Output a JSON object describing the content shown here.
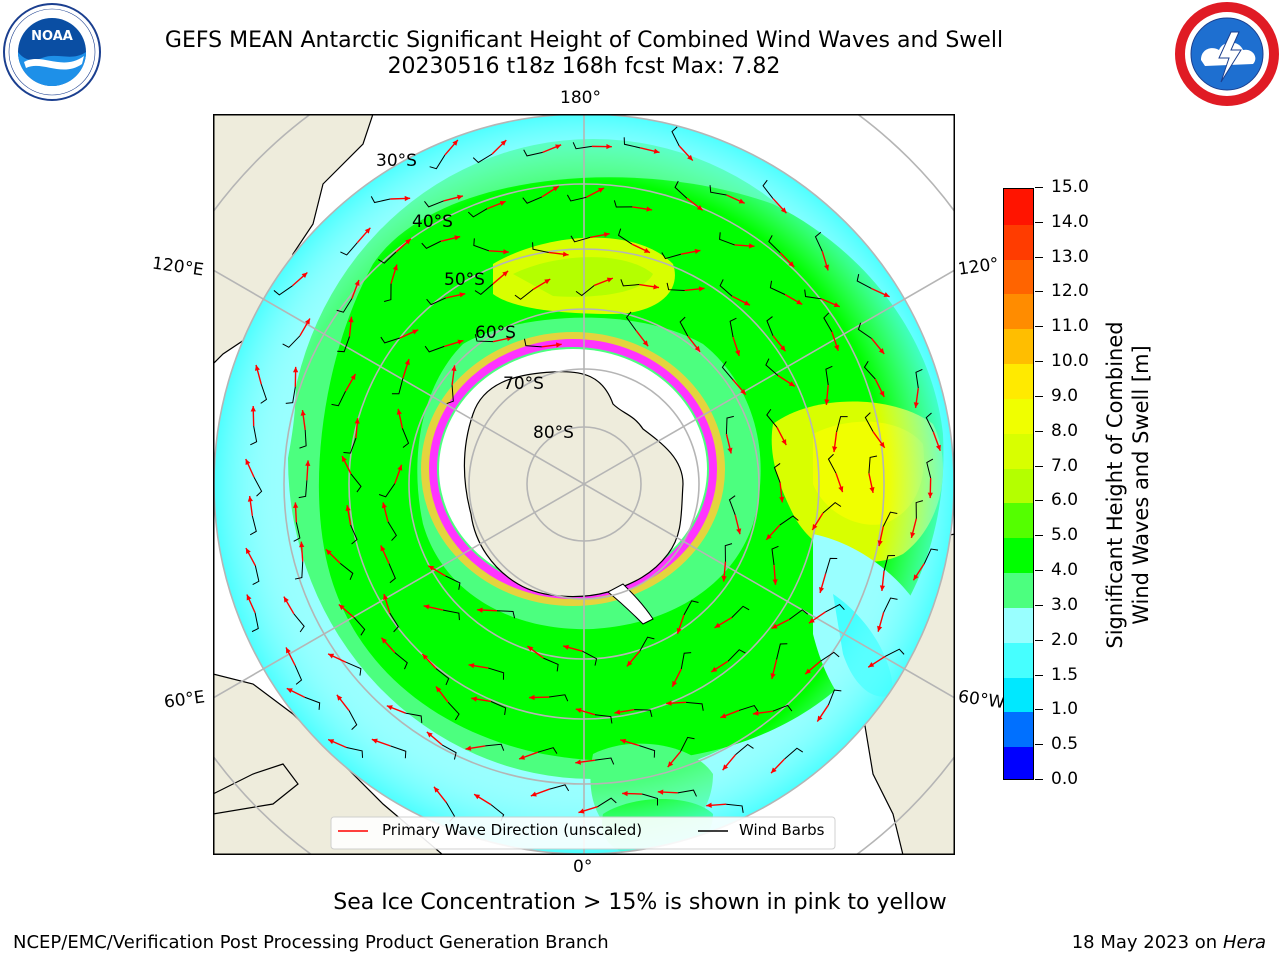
{
  "header": {
    "title_line1": "GEFS MEAN Antarctic Significant Height of Combined Wind Waves and Swell",
    "title_line2": "20230516 t18z 168h fcst   Max: 7.82"
  },
  "logos": {
    "left": "noaa-logo",
    "right": "national-weather-service-logo"
  },
  "map": {
    "projection": "south-polar-stereographic",
    "longitude_labels": {
      "top": "180°",
      "left_upper": "120°E",
      "right_upper": "120°",
      "left_lower": "60°E",
      "right_lower": "60°W",
      "bottom": "0°"
    },
    "latitude_labels": [
      "30°S",
      "40°S",
      "50°S",
      "60°S",
      "70°S",
      "80°S"
    ],
    "legend": {
      "wave_direction": "Primary Wave Direction (unscaled)",
      "wind_barbs": "Wind Barbs"
    },
    "colors": {
      "land": "#eeecdc",
      "ice_edge": "#ff33ff",
      "ice_fringe": "#ffcc33",
      "arrow": "#ff0000",
      "barb": "#000000",
      "graticule": "#b5b5b5"
    }
  },
  "colorbar": {
    "title_line1": "Significant Height of Combined",
    "title_line2": "Wind Waves and Swell [m]",
    "tick_labels": [
      "0.0",
      "0.5",
      "1.0",
      "1.5",
      "2.0",
      "3.0",
      "4.0",
      "5.0",
      "6.0",
      "7.0",
      "8.0",
      "9.0",
      "10.0",
      "11.0",
      "12.0",
      "13.0",
      "14.0",
      "15.0"
    ],
    "colors": [
      "#0000ff",
      "#0070ff",
      "#00e8ff",
      "#46ffff",
      "#99ffff",
      "#4cff7f",
      "#00ff00",
      "#54ff00",
      "#b4ff00",
      "#d8ff00",
      "#f0ff00",
      "#ffea00",
      "#ffbe00",
      "#ff8c00",
      "#ff6400",
      "#ff3c00",
      "#ff1400"
    ]
  },
  "notes": {
    "sea_ice": "Sea Ice Concentration > 15% is shown in pink to yellow",
    "producer": "NCEP/EMC/Verification Post Processing Product Generation Branch",
    "date": "18 May 2023 on",
    "host": "Hera"
  }
}
